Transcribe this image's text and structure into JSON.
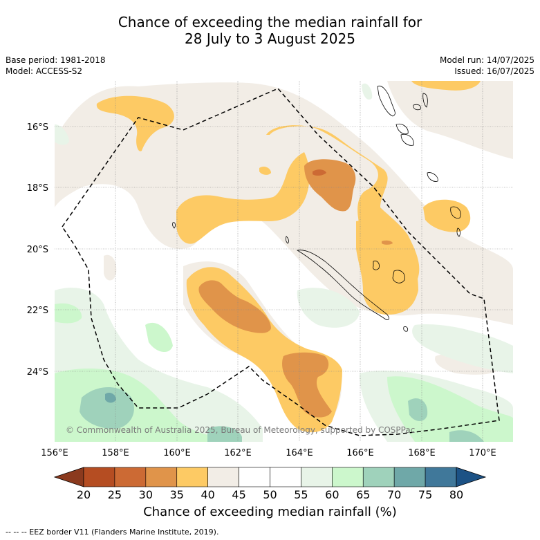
{
  "header": {
    "title_line1": "Chance of exceeding the median rainfall for",
    "title_line2": "28 July to 3 August 2025",
    "base_period": "Base period: 1981-2018",
    "model": "Model: ACCESS-S2",
    "model_run": "Model run: 14/07/2025",
    "issued": "Issued: 16/07/2025"
  },
  "map": {
    "lat_labels": [
      "16°S",
      "18°S",
      "20°S",
      "22°S",
      "24°S"
    ],
    "lon_labels": [
      "156°E",
      "158°E",
      "160°E",
      "162°E",
      "164°E",
      "166°E",
      "168°E",
      "170°E"
    ],
    "copyright": "© Commonwealth of Australia 2025, Bureau of Meteorology, supported by COSPPac",
    "extent": {
      "lon": [
        156,
        171
      ],
      "lat": [
        -14.9,
        -26.7
      ]
    },
    "eez_border": "dashed black line"
  },
  "colorbar": {
    "ticks": [
      "20",
      "25",
      "30",
      "35",
      "40",
      "45",
      "50",
      "55",
      "60",
      "65",
      "70",
      "75",
      "80"
    ],
    "colors": [
      "#8b3a1e",
      "#b54d22",
      "#cc6a34",
      "#e0944a",
      "#fdca64",
      "#f2ede6",
      "#ffffff",
      "#ffffff",
      "#e8f4e8",
      "#ccf7cc",
      "#9fd2bb",
      "#6fa8a8",
      "#40789a",
      "#1c5285"
    ],
    "title": "Chance of exceeding median rainfall (%)"
  },
  "footer": {
    "legend_text": "--  --  -- EEZ border V11 (Flanders Marine Institute, 2019)."
  }
}
